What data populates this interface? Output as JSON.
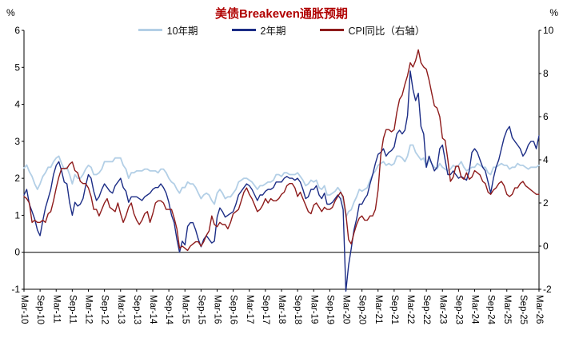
{
  "title": "美债Breakeven通胀预期",
  "left_axis_unit": "%",
  "right_axis_unit": "%",
  "colors": {
    "title": "#b00000",
    "axis": "#000000",
    "series_10y": "#b3cfe6",
    "series_2y": "#1c2d86",
    "series_cpi": "#8e1b1b"
  },
  "chart_data": {
    "type": "line",
    "title": "美债Breakeven通胀预期",
    "x_frequency": "monthly",
    "x_start": "Mar-10",
    "x_end": "Mar-26",
    "x_tick_labels": [
      "Mar-10",
      "Sep-10",
      "Mar-11",
      "Sep-11",
      "Mar-12",
      "Sep-12",
      "Mar-13",
      "Sep-13",
      "Mar-14",
      "Sep-14",
      "Mar-15",
      "Sep-15",
      "Mar-16",
      "Sep-16",
      "Mar-17",
      "Sep-17",
      "Mar-18",
      "Sep-18",
      "Mar-19",
      "Sep-19",
      "Mar-20",
      "Sep-20",
      "Mar-21",
      "Sep-21",
      "Mar-22",
      "Sep-22",
      "Mar-23",
      "Sep-23",
      "Mar-24",
      "Sep-24",
      "Mar-25",
      "Sep-25",
      "Mar-26"
    ],
    "x_ticks_every_n_points": 6,
    "left_axis": {
      "unit": "%",
      "min": -1,
      "max": 6,
      "ticks": [
        -1,
        0,
        1,
        2,
        3,
        4,
        5,
        6
      ]
    },
    "right_axis": {
      "unit": "%",
      "min": -2,
      "max": 10,
      "ticks": [
        -2,
        0,
        2,
        4,
        6,
        8,
        10
      ]
    },
    "grid": "none",
    "zero_line_axis": "left",
    "legend_position": "top",
    "series": [
      {
        "name": "10年期",
        "axis": "left",
        "color": "#b3cfe6",
        "values": [
          2.28,
          2.36,
          2.18,
          2.05,
          1.85,
          1.7,
          1.85,
          2.05,
          2.15,
          2.3,
          2.3,
          2.45,
          2.55,
          2.6,
          2.4,
          2.25,
          2.3,
          2.1,
          1.85,
          2.1,
          2.0,
          2.0,
          2.1,
          2.25,
          2.35,
          2.3,
          2.1,
          2.1,
          2.15,
          2.25,
          2.45,
          2.45,
          2.45,
          2.45,
          2.55,
          2.55,
          2.55,
          2.35,
          2.25,
          2.0,
          2.15,
          2.15,
          2.2,
          2.2,
          2.2,
          2.25,
          2.25,
          2.2,
          2.2,
          2.2,
          2.15,
          2.25,
          2.25,
          2.15,
          2.0,
          1.9,
          1.85,
          1.7,
          1.6,
          1.75,
          1.75,
          1.9,
          1.85,
          1.85,
          1.75,
          1.6,
          1.45,
          1.55,
          1.6,
          1.55,
          1.4,
          1.3,
          1.6,
          1.7,
          1.6,
          1.45,
          1.5,
          1.5,
          1.6,
          1.7,
          1.9,
          1.95,
          2.0,
          2.0,
          1.95,
          1.9,
          1.8,
          1.7,
          1.8,
          1.8,
          1.85,
          1.9,
          1.9,
          1.95,
          2.1,
          2.1,
          2.05,
          2.15,
          2.15,
          2.1,
          2.1,
          2.1,
          2.15,
          2.05,
          1.95,
          1.8,
          1.85,
          1.95,
          1.9,
          1.95,
          1.75,
          1.7,
          1.8,
          1.55,
          1.55,
          1.6,
          1.65,
          1.75,
          1.65,
          1.4,
          0.95,
          1.1,
          1.15,
          1.35,
          1.5,
          1.7,
          1.65,
          1.7,
          1.75,
          1.95,
          2.1,
          2.2,
          2.35,
          2.4,
          2.45,
          2.35,
          2.4,
          2.35,
          2.4,
          2.6,
          2.6,
          2.55,
          2.45,
          2.6,
          2.9,
          2.9,
          2.7,
          2.6,
          2.5,
          2.55,
          2.3,
          2.5,
          2.4,
          2.3,
          2.25,
          2.4,
          2.3,
          2.25,
          2.2,
          2.25,
          2.35,
          2.3,
          2.35,
          2.45,
          2.3,
          2.2,
          2.25,
          2.3,
          2.3,
          2.4,
          2.35,
          2.3,
          2.3,
          2.15,
          2.1,
          2.3,
          2.3,
          2.35,
          2.4,
          2.35,
          2.35,
          2.25,
          2.3,
          2.3,
          2.4,
          2.35,
          2.35,
          2.3,
          2.25,
          2.3,
          2.3,
          2.3,
          2.35
        ]
      },
      {
        "name": "2年期",
        "axis": "left",
        "color": "#1c2d86",
        "values": [
          1.55,
          1.7,
          1.3,
          1.1,
          0.9,
          0.6,
          0.45,
          0.85,
          1.2,
          1.45,
          1.7,
          2.1,
          2.35,
          2.45,
          2.2,
          1.9,
          1.85,
          1.35,
          1.0,
          1.35,
          1.25,
          1.3,
          1.45,
          1.8,
          2.1,
          2.0,
          1.65,
          1.4,
          1.5,
          1.7,
          1.85,
          1.75,
          1.65,
          1.6,
          1.8,
          1.9,
          2.0,
          1.75,
          1.65,
          1.35,
          1.5,
          1.5,
          1.5,
          1.45,
          1.4,
          1.5,
          1.55,
          1.6,
          1.7,
          1.75,
          1.75,
          1.85,
          1.75,
          1.6,
          1.35,
          1.0,
          0.8,
          0.35,
          0.0,
          0.3,
          0.2,
          0.7,
          0.8,
          0.8,
          0.6,
          0.35,
          0.15,
          0.35,
          0.45,
          0.35,
          0.25,
          0.3,
          0.95,
          1.2,
          1.1,
          0.95,
          1.0,
          1.05,
          1.1,
          1.3,
          1.55,
          1.65,
          1.75,
          1.85,
          1.8,
          1.7,
          1.55,
          1.4,
          1.55,
          1.55,
          1.65,
          1.7,
          1.7,
          1.75,
          1.9,
          1.9,
          1.9,
          2.0,
          2.05,
          2.0,
          2.0,
          1.95,
          2.0,
          1.9,
          1.7,
          1.45,
          1.5,
          1.7,
          1.7,
          1.8,
          1.55,
          1.45,
          1.6,
          1.3,
          1.3,
          1.35,
          1.45,
          1.55,
          1.45,
          1.15,
          -1.05,
          -0.35,
          0.1,
          0.6,
          0.9,
          1.3,
          1.3,
          1.45,
          1.55,
          1.85,
          2.1,
          2.4,
          2.65,
          2.7,
          2.8,
          2.6,
          2.7,
          2.75,
          2.85,
          3.2,
          3.3,
          3.2,
          3.3,
          3.7,
          4.9,
          4.4,
          4.1,
          4.3,
          3.4,
          3.2,
          2.3,
          2.6,
          2.4,
          2.2,
          2.3,
          2.8,
          2.9,
          2.5,
          2.1,
          2.1,
          2.2,
          2.1,
          2.0,
          2.05,
          2.0,
          1.95,
          2.2,
          2.7,
          2.8,
          2.7,
          2.5,
          2.3,
          2.2,
          1.9,
          1.6,
          2.0,
          2.3,
          2.5,
          2.8,
          3.1,
          3.3,
          3.4,
          3.1,
          3.0,
          2.9,
          2.8,
          2.6,
          2.7,
          2.9,
          3.0,
          3.0,
          2.8,
          3.15
        ]
      },
      {
        "name": "CPI同比（右轴）",
        "axis": "right",
        "color": "#8e1b1b",
        "values": [
          2.3,
          2.2,
          2.0,
          1.1,
          1.2,
          1.1,
          1.1,
          1.2,
          1.1,
          1.5,
          1.6,
          2.1,
          2.7,
          3.2,
          3.6,
          3.6,
          3.6,
          3.8,
          3.9,
          3.5,
          3.4,
          3.0,
          2.9,
          2.9,
          2.7,
          2.3,
          1.7,
          1.7,
          1.4,
          1.7,
          2.0,
          2.2,
          1.8,
          1.7,
          1.6,
          2.0,
          1.5,
          1.1,
          1.4,
          1.8,
          2.0,
          1.5,
          1.2,
          1.0,
          1.2,
          1.5,
          1.6,
          1.1,
          1.5,
          2.0,
          2.1,
          2.1,
          2.0,
          1.7,
          1.7,
          1.7,
          1.3,
          0.8,
          -0.1,
          0.0,
          -0.1,
          -0.2,
          0.0,
          0.1,
          0.2,
          0.2,
          0.0,
          0.2,
          0.5,
          0.7,
          1.4,
          1.0,
          0.9,
          1.1,
          1.0,
          1.0,
          0.8,
          1.1,
          1.5,
          1.6,
          1.7,
          2.1,
          2.5,
          2.7,
          2.4,
          2.2,
          1.9,
          1.6,
          1.7,
          1.9,
          2.2,
          2.0,
          2.2,
          2.1,
          2.1,
          2.2,
          2.4,
          2.5,
          2.8,
          2.9,
          2.9,
          2.7,
          2.3,
          2.5,
          2.2,
          1.9,
          1.6,
          1.5,
          1.9,
          2.0,
          1.8,
          1.6,
          1.8,
          1.7,
          1.7,
          1.8,
          2.1,
          2.3,
          2.5,
          2.3,
          1.5,
          0.3,
          0.1,
          0.6,
          1.0,
          1.3,
          1.4,
          1.2,
          1.2,
          1.4,
          1.4,
          1.7,
          2.6,
          4.2,
          5.0,
          5.4,
          5.4,
          5.3,
          5.4,
          6.2,
          6.8,
          7.0,
          7.5,
          7.9,
          8.5,
          8.3,
          8.6,
          9.1,
          8.5,
          8.3,
          8.2,
          7.7,
          7.1,
          6.5,
          6.4,
          6.0,
          5.0,
          4.9,
          4.0,
          3.0,
          3.2,
          3.7,
          3.7,
          3.2,
          3.1,
          3.4,
          3.1,
          3.2,
          3.5,
          3.4,
          3.3,
          3.0,
          2.9,
          2.5,
          2.4,
          2.6,
          2.7,
          2.9,
          3.0,
          2.8,
          2.4,
          2.3,
          2.4,
          2.7,
          2.7,
          2.9,
          3.0,
          2.8,
          2.7,
          2.6,
          2.5,
          2.4,
          2.4
        ]
      }
    ]
  }
}
